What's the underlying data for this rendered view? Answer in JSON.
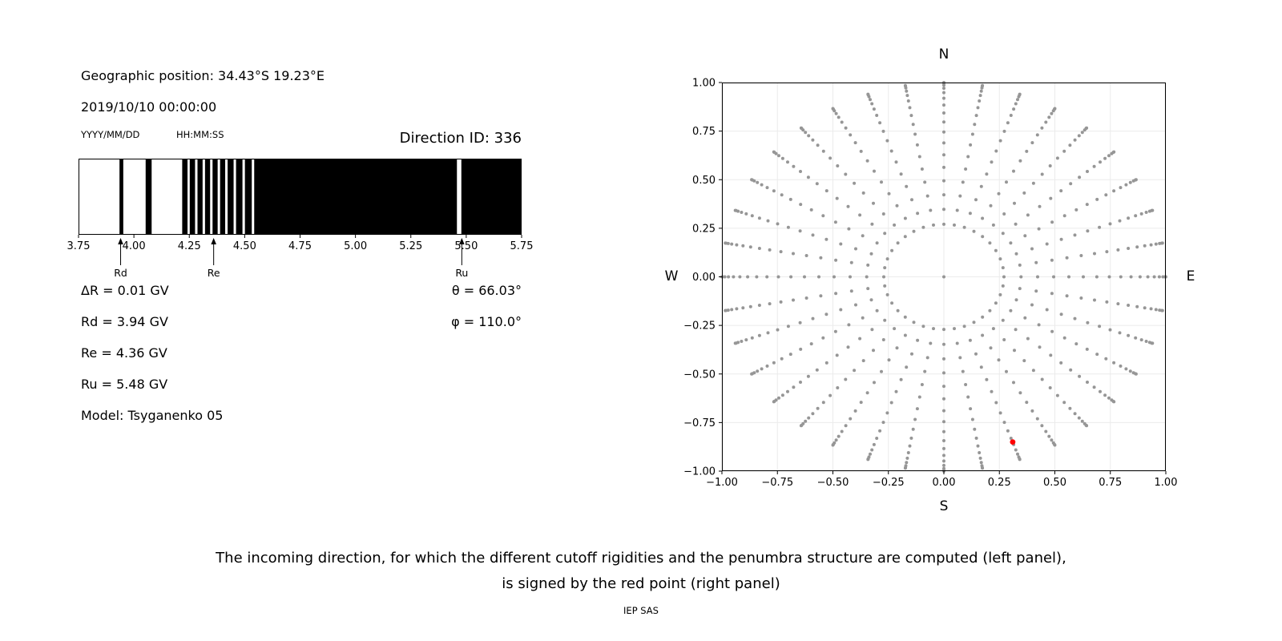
{
  "header": {
    "geo_position": "Geographic position: 34.43°S 19.23°E",
    "datetime": "2019/10/10 00:00:00",
    "date_format": "YYYY/MM/DD",
    "time_format": "HH:MM:SS",
    "direction_id": "Direction ID: 336"
  },
  "info": {
    "delta_r": "ΔR = 0.01 GV",
    "rd": "Rd = 3.94 GV",
    "re": "Re = 4.36 GV",
    "ru": "Ru = 5.48 GV",
    "model": "Model: Tsyganenko 05",
    "theta": "θ = 66.03°",
    "phi": "φ = 110.0°"
  },
  "caption": {
    "line1": "The incoming direction, for which the different cutoff rigidities and the penumbra structure are computed (left panel),",
    "line2": "is signed by the red point (right panel)",
    "credit": "IEP SAS"
  },
  "chart_data": [
    {
      "name": "penumbra-structure",
      "type": "bar",
      "xlim": [
        3.75,
        5.75
      ],
      "x_tick_values": [
        3.75,
        4.0,
        4.25,
        4.5,
        4.75,
        5.0,
        5.25,
        5.5,
        5.75
      ],
      "x_tick_labels": [
        "3.75",
        "4.00",
        "4.25",
        "4.50",
        "4.75",
        "5.00",
        "5.25",
        "5.50",
        "5.75"
      ],
      "colors": {
        "allowed": "#000000",
        "forbidden": "#ffffff"
      },
      "allowed_bands_gv": [
        [
          3.935,
          3.952
        ],
        [
          4.053,
          4.08
        ],
        [
          4.218,
          4.242
        ],
        [
          4.252,
          4.276
        ],
        [
          4.287,
          4.31
        ],
        [
          4.321,
          4.344
        ],
        [
          4.355,
          4.378
        ],
        [
          4.389,
          4.412
        ],
        [
          4.423,
          4.45
        ],
        [
          4.461,
          4.49
        ],
        [
          4.501,
          4.532
        ],
        [
          4.543,
          5.458
        ],
        [
          5.478,
          5.75
        ]
      ],
      "markers": [
        {
          "label": "Rd",
          "x": 3.94
        },
        {
          "label": "Re",
          "x": 4.36
        },
        {
          "label": "Ru",
          "x": 5.48
        }
      ]
    },
    {
      "name": "incoming-direction-map",
      "type": "scatter",
      "xlim": [
        -1,
        1
      ],
      "ylim": [
        -1,
        1
      ],
      "x_tick_values": [
        -1,
        -0.75,
        -0.5,
        -0.25,
        0,
        0.25,
        0.5,
        0.75,
        1
      ],
      "x_tick_labels": [
        "−1.00",
        "−0.75",
        "−0.50",
        "−0.25",
        "0.00",
        "0.25",
        "0.50",
        "0.75",
        "1.00"
      ],
      "y_tick_values": [
        -1,
        -0.75,
        -0.5,
        -0.25,
        0,
        0.25,
        0.5,
        0.75,
        1
      ],
      "y_tick_labels": [
        "−1.00",
        "−0.75",
        "−0.50",
        "−0.25",
        "0.00",
        "0.25",
        "0.50",
        "0.75",
        "1.00"
      ],
      "grid": true,
      "compass": {
        "top": "N",
        "bottom": "S",
        "left": "W",
        "right": "E"
      },
      "points_spec": {
        "azimuth_start_deg": 0,
        "azimuth_step_deg": 10,
        "azimuth_count": 36,
        "zenith_min_deg": 15.7,
        "zenith_max_deg": 90,
        "points_per_spoke": 17,
        "radius_rule": "sin(zenith)",
        "center_point": true,
        "color": "#969696",
        "size": 2
      },
      "selected_point": {
        "x": 0.31,
        "y": -0.85,
        "color": "#ff0000"
      }
    }
  ]
}
